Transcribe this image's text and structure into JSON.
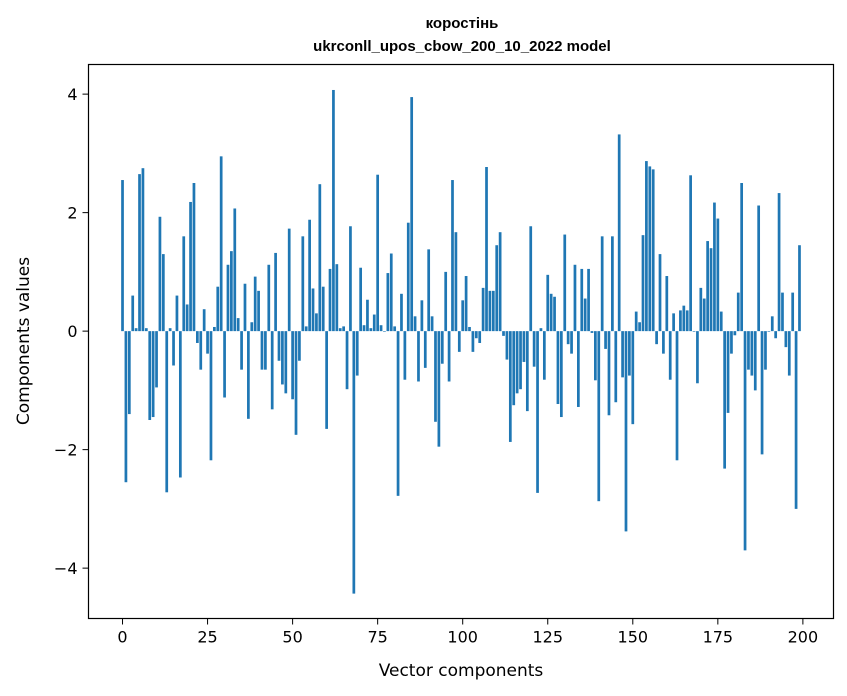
{
  "chart_data": {
    "type": "bar",
    "title": "коростінь",
    "subtitle": "ukrconll_upos_cbow_200_10_2022 model",
    "xlabel": "Vector components",
    "ylabel": "Components values",
    "xlim": [
      -10,
      209
    ],
    "ylim": [
      -4.85,
      4.5
    ],
    "xticks": [
      0,
      25,
      50,
      75,
      100,
      125,
      150,
      175,
      200
    ],
    "yticks": [
      -4,
      -2,
      0,
      2,
      4
    ],
    "ytick_labels": [
      "−4",
      "−2",
      "0",
      "2",
      "4"
    ],
    "grid": false,
    "bar_color": "#1f77b4",
    "x": [
      0,
      1,
      2,
      3,
      4,
      5,
      6,
      7,
      8,
      9,
      10,
      11,
      12,
      13,
      14,
      15,
      16,
      17,
      18,
      19,
      20,
      21,
      22,
      23,
      24,
      25,
      26,
      27,
      28,
      29,
      30,
      31,
      32,
      33,
      34,
      35,
      36,
      37,
      38,
      39,
      40,
      41,
      42,
      43,
      44,
      45,
      46,
      47,
      48,
      49,
      50,
      51,
      52,
      53,
      54,
      55,
      56,
      57,
      58,
      59,
      60,
      61,
      62,
      63,
      64,
      65,
      66,
      67,
      68,
      69,
      70,
      71,
      72,
      73,
      74,
      75,
      76,
      77,
      78,
      79,
      80,
      81,
      82,
      83,
      84,
      85,
      86,
      87,
      88,
      89,
      90,
      91,
      92,
      93,
      94,
      95,
      96,
      97,
      98,
      99,
      100,
      101,
      102,
      103,
      104,
      105,
      106,
      107,
      108,
      109,
      110,
      111,
      112,
      113,
      114,
      115,
      116,
      117,
      118,
      119,
      120,
      121,
      122,
      123,
      124,
      125,
      126,
      127,
      128,
      129,
      130,
      131,
      132,
      133,
      134,
      135,
      136,
      137,
      138,
      139,
      140,
      141,
      142,
      143,
      144,
      145,
      146,
      147,
      148,
      149,
      150,
      151,
      152,
      153,
      154,
      155,
      156,
      157,
      158,
      159,
      160,
      161,
      162,
      163,
      164,
      165,
      166,
      167,
      168,
      169,
      170,
      171,
      172,
      173,
      174,
      175,
      176,
      177,
      178,
      179,
      180,
      181,
      182,
      183,
      184,
      185,
      186,
      187,
      188,
      189,
      190,
      191,
      192,
      193,
      194,
      195,
      196,
      197,
      198,
      199
    ],
    "values": [
      2.55,
      -2.55,
      -1.4,
      0.6,
      0.05,
      2.65,
      2.75,
      0.05,
      -1.5,
      -1.45,
      -0.95,
      1.93,
      1.3,
      -2.72,
      0.05,
      -0.58,
      0.6,
      -2.47,
      1.6,
      0.45,
      2.18,
      2.5,
      -0.2,
      -0.65,
      0.37,
      -0.38,
      -2.18,
      0.07,
      0.75,
      2.95,
      -1.12,
      1.12,
      1.35,
      2.07,
      0.22,
      -0.65,
      0.8,
      -1.48,
      0.15,
      0.92,
      0.68,
      -0.65,
      -0.65,
      1.12,
      -1.32,
      1.32,
      -0.5,
      -0.9,
      -1.05,
      1.73,
      -1.15,
      -1.75,
      -0.5,
      1.6,
      0.08,
      1.88,
      0.72,
      0.3,
      2.48,
      0.75,
      -1.65,
      1.05,
      4.07,
      1.13,
      0.05,
      0.08,
      -0.98,
      1.77,
      -4.43,
      -0.75,
      1.07,
      0.1,
      0.53,
      0.05,
      0.28,
      2.64,
      0.1,
      0.0,
      0.98,
      1.31,
      0.08,
      -2.78,
      0.63,
      -0.82,
      1.83,
      3.95,
      0.25,
      -0.85,
      0.52,
      -0.62,
      1.38,
      0.25,
      -1.53,
      -1.95,
      -0.55,
      1.0,
      -0.85,
      2.55,
      1.67,
      -0.35,
      0.52,
      0.93,
      0.07,
      -0.35,
      -0.12,
      -0.2,
      0.73,
      2.77,
      0.68,
      0.68,
      1.45,
      1.67,
      -0.08,
      -0.48,
      -1.87,
      -1.25,
      -1.05,
      -0.98,
      -0.52,
      -1.35,
      1.77,
      -0.6,
      -2.73,
      0.05,
      -0.82,
      0.95,
      0.63,
      0.58,
      -1.23,
      -1.45,
      1.63,
      -0.22,
      -0.38,
      1.12,
      -1.28,
      1.05,
      0.55,
      1.05,
      -0.03,
      -0.83,
      -2.87,
      1.6,
      -0.3,
      -1.42,
      1.6,
      -1.2,
      3.32,
      -0.78,
      -3.38,
      -0.75,
      -1.57,
      0.33,
      0.15,
      1.62,
      2.87,
      2.78,
      2.73,
      -0.22,
      1.3,
      -0.38,
      0.93,
      -0.82,
      0.3,
      -2.18,
      0.35,
      0.43,
      0.35,
      2.63,
      0.0,
      -0.88,
      0.73,
      0.55,
      1.52,
      1.4,
      2.17,
      1.9,
      0.33,
      -2.32,
      -1.38,
      -0.38,
      -0.07,
      0.65,
      2.5,
      -3.7,
      -0.65,
      -0.75,
      -1.0,
      2.12,
      -2.08,
      -0.65,
      0.0,
      0.25,
      -0.12,
      2.33,
      0.65,
      -0.27,
      -0.75,
      0.65,
      -3.0,
      1.45
    ]
  }
}
